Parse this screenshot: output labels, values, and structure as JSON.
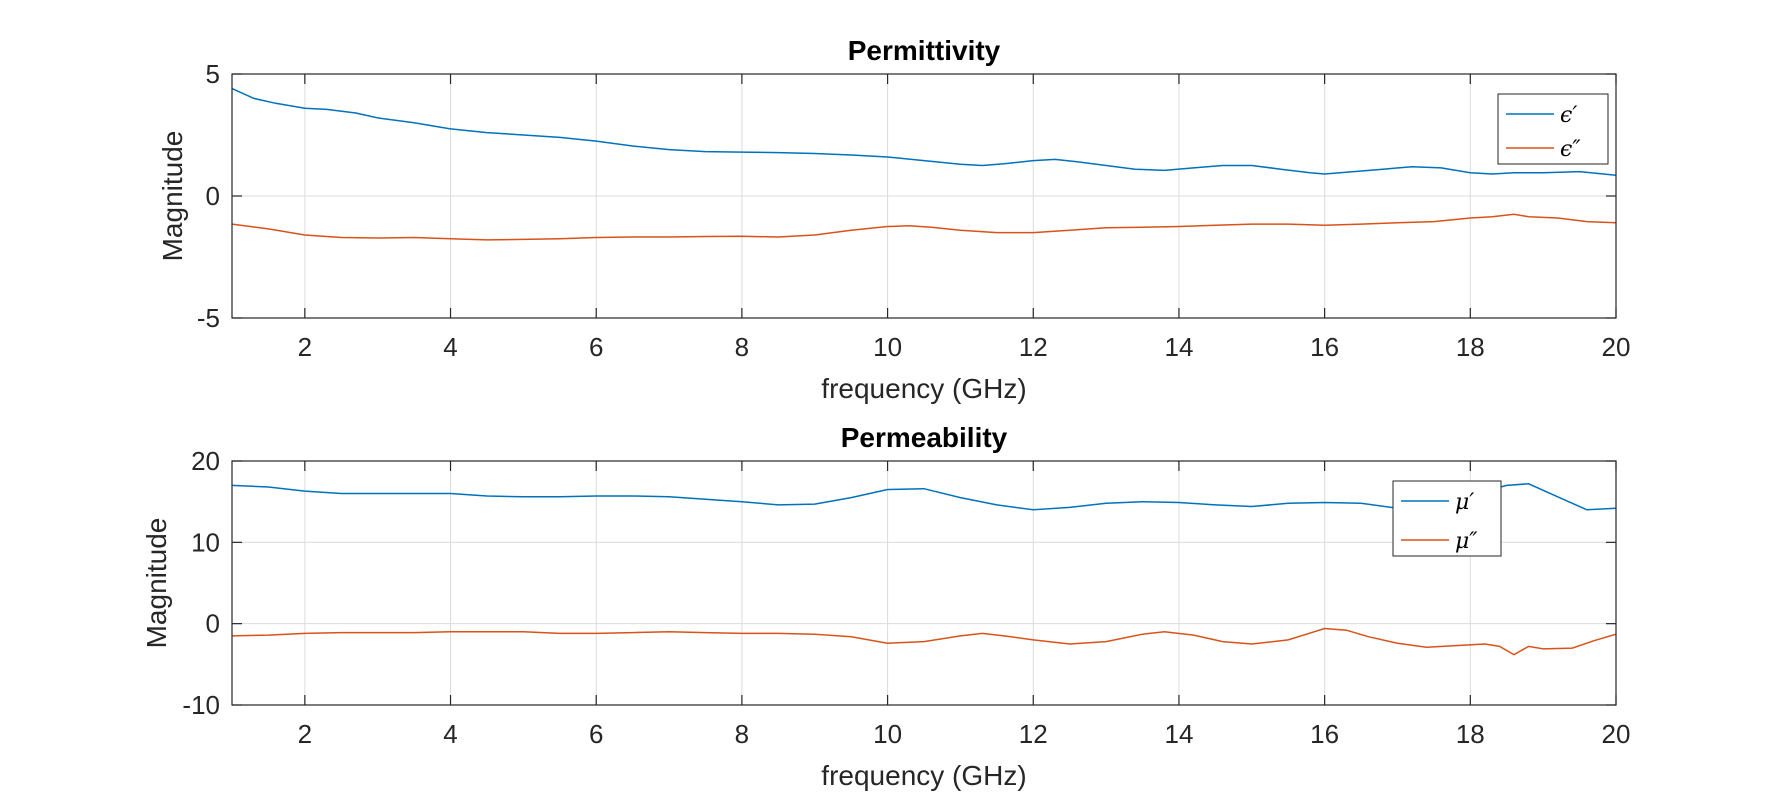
{
  "chart_data": [
    {
      "type": "line",
      "title": "Permittivity",
      "xlabel": "frequency (GHz)",
      "ylabel": "Magnitude",
      "xlim": [
        1,
        20
      ],
      "ylim": [
        -5,
        5
      ],
      "xticks": [
        2,
        4,
        6,
        8,
        10,
        12,
        14,
        16,
        18,
        20
      ],
      "yticks": [
        -5,
        0,
        5
      ],
      "grid": true,
      "legend_position": "top-right",
      "series": [
        {
          "name": "ϵ′",
          "color": "#0072BD",
          "x": [
            1.0,
            1.3,
            1.6,
            2.0,
            2.3,
            2.7,
            3.0,
            3.5,
            4.0,
            4.5,
            5.0,
            5.5,
            6.0,
            6.5,
            7.0,
            7.5,
            8.0,
            8.5,
            9.0,
            9.5,
            10.0,
            10.5,
            11.0,
            11.3,
            11.6,
            12.0,
            12.3,
            12.6,
            13.0,
            13.4,
            13.8,
            14.2,
            14.6,
            15.0,
            15.4,
            15.8,
            16.0,
            16.4,
            16.8,
            17.2,
            17.6,
            18.0,
            18.3,
            18.6,
            19.0,
            19.5,
            20.0
          ],
          "values": [
            4.4,
            4.0,
            3.8,
            3.6,
            3.55,
            3.4,
            3.2,
            3.0,
            2.75,
            2.6,
            2.5,
            2.4,
            2.25,
            2.05,
            1.9,
            1.82,
            1.8,
            1.78,
            1.74,
            1.68,
            1.6,
            1.45,
            1.3,
            1.25,
            1.32,
            1.45,
            1.5,
            1.4,
            1.25,
            1.1,
            1.05,
            1.15,
            1.25,
            1.25,
            1.1,
            0.95,
            0.9,
            1.0,
            1.1,
            1.2,
            1.15,
            0.95,
            0.9,
            0.95,
            0.95,
            1.0,
            0.85
          ]
        },
        {
          "name": "ϵ″",
          "color": "#D95319",
          "x": [
            1.0,
            1.5,
            2.0,
            2.5,
            3.0,
            3.5,
            4.0,
            4.5,
            5.0,
            5.5,
            6.0,
            6.5,
            7.0,
            7.5,
            8.0,
            8.5,
            9.0,
            9.5,
            10.0,
            10.3,
            10.6,
            11.0,
            11.5,
            12.0,
            12.5,
            13.0,
            13.5,
            14.0,
            14.5,
            15.0,
            15.5,
            16.0,
            16.5,
            17.0,
            17.5,
            18.0,
            18.3,
            18.6,
            18.8,
            19.2,
            19.6,
            20.0
          ],
          "values": [
            -1.15,
            -1.35,
            -1.6,
            -1.7,
            -1.72,
            -1.7,
            -1.75,
            -1.8,
            -1.78,
            -1.75,
            -1.7,
            -1.68,
            -1.68,
            -1.66,
            -1.65,
            -1.68,
            -1.6,
            -1.4,
            -1.25,
            -1.22,
            -1.28,
            -1.4,
            -1.5,
            -1.5,
            -1.4,
            -1.3,
            -1.28,
            -1.25,
            -1.2,
            -1.15,
            -1.15,
            -1.2,
            -1.15,
            -1.1,
            -1.05,
            -0.9,
            -0.85,
            -0.75,
            -0.85,
            -0.9,
            -1.05,
            -1.1
          ]
        }
      ]
    },
    {
      "type": "line",
      "title": "Permeability",
      "xlabel": "frequency (GHz)",
      "ylabel": "Magnitude",
      "xlim": [
        1,
        20
      ],
      "ylim": [
        -10,
        20
      ],
      "xticks": [
        2,
        4,
        6,
        8,
        10,
        12,
        14,
        16,
        18,
        20
      ],
      "yticks": [
        -10,
        0,
        10,
        20
      ],
      "grid": true,
      "legend_position": "top-right",
      "series": [
        {
          "name": "μ′",
          "color": "#0072BD",
          "x": [
            1.0,
            1.5,
            2.0,
            2.5,
            3.0,
            3.5,
            4.0,
            4.5,
            5.0,
            5.5,
            6.0,
            6.5,
            7.0,
            7.5,
            8.0,
            8.5,
            9.0,
            9.5,
            10.0,
            10.5,
            11.0,
            11.5,
            12.0,
            12.5,
            13.0,
            13.5,
            14.0,
            14.5,
            15.0,
            15.5,
            16.0,
            16.5,
            17.0,
            17.5,
            18.0,
            18.5,
            18.8,
            19.2,
            19.6,
            20.0
          ],
          "values": [
            17.0,
            16.8,
            16.3,
            16.0,
            16.0,
            16.0,
            16.0,
            15.7,
            15.6,
            15.6,
            15.7,
            15.7,
            15.6,
            15.3,
            15.0,
            14.6,
            14.7,
            15.5,
            16.5,
            16.6,
            15.5,
            14.6,
            14.0,
            14.3,
            14.8,
            15.0,
            14.9,
            14.6,
            14.4,
            14.8,
            14.9,
            14.8,
            14.2,
            14.0,
            15.8,
            17.0,
            17.2,
            15.6,
            14.0,
            14.2
          ]
        },
        {
          "name": "μ″",
          "color": "#D95319",
          "x": [
            1.0,
            1.5,
            2.0,
            2.5,
            3.0,
            3.5,
            4.0,
            4.5,
            5.0,
            5.5,
            6.0,
            6.5,
            7.0,
            7.5,
            8.0,
            8.5,
            9.0,
            9.5,
            10.0,
            10.5,
            11.0,
            11.3,
            11.6,
            12.0,
            12.5,
            13.0,
            13.5,
            13.8,
            14.2,
            14.6,
            15.0,
            15.5,
            16.0,
            16.3,
            16.6,
            17.0,
            17.4,
            17.8,
            18.2,
            18.4,
            18.6,
            18.8,
            19.0,
            19.4,
            19.7,
            20.0
          ],
          "values": [
            -1.5,
            -1.4,
            -1.2,
            -1.1,
            -1.1,
            -1.1,
            -1.0,
            -1.0,
            -1.0,
            -1.2,
            -1.2,
            -1.1,
            -1.0,
            -1.1,
            -1.2,
            -1.2,
            -1.3,
            -1.6,
            -2.4,
            -2.2,
            -1.5,
            -1.2,
            -1.5,
            -2.0,
            -2.5,
            -2.2,
            -1.3,
            -1.0,
            -1.4,
            -2.2,
            -2.5,
            -2.0,
            -0.6,
            -0.8,
            -1.6,
            -2.4,
            -2.9,
            -2.7,
            -2.5,
            -2.8,
            -3.8,
            -2.8,
            -3.1,
            -3.0,
            -2.1,
            -1.3
          ]
        }
      ]
    }
  ]
}
